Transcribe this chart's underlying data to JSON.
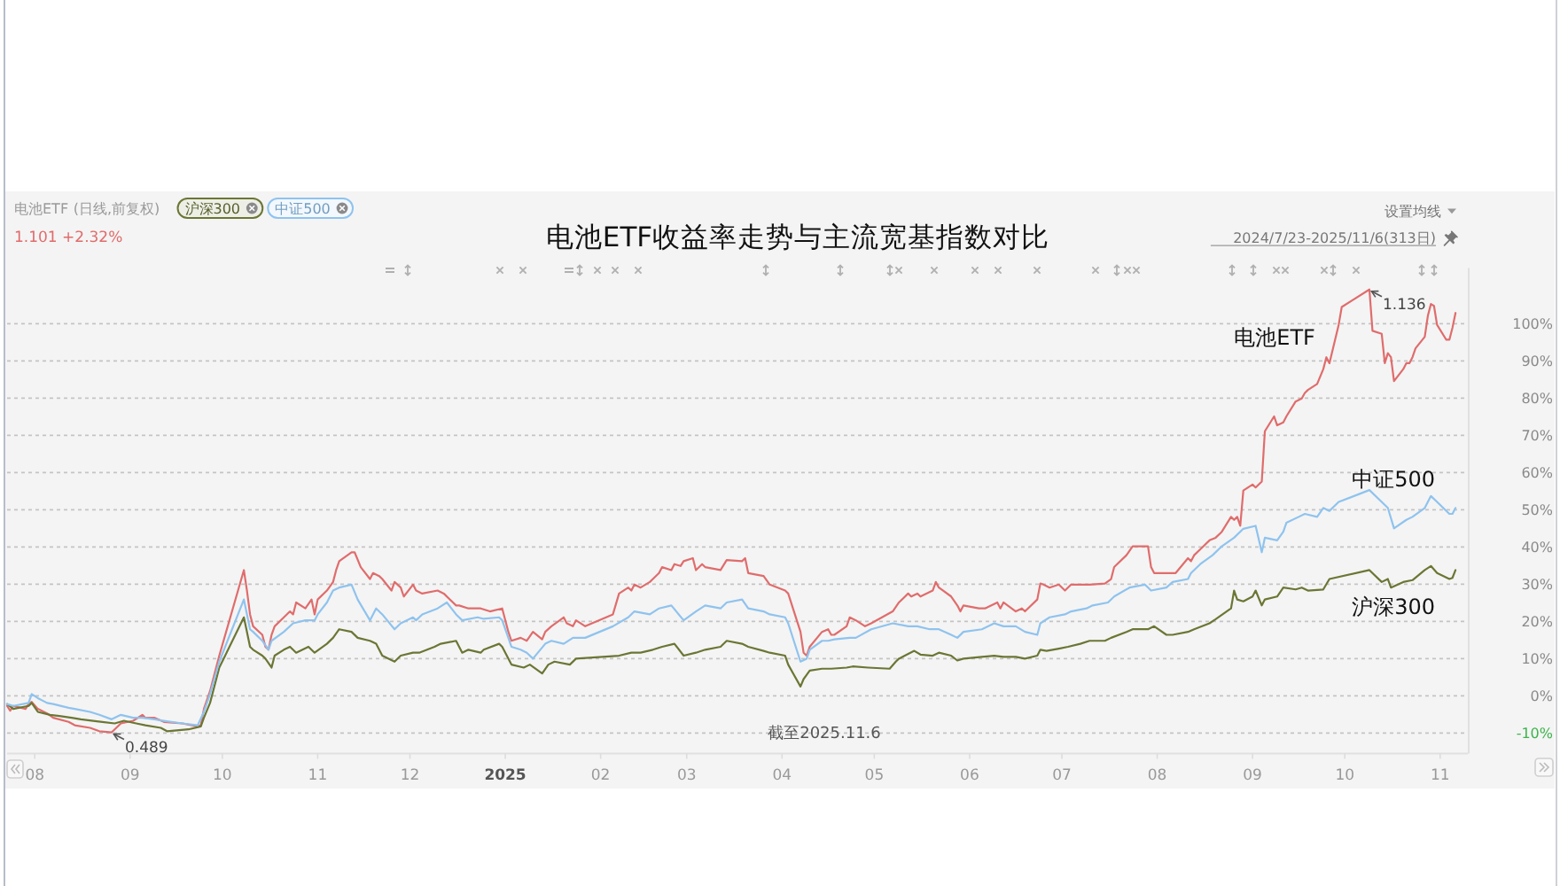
{
  "chart_data": {
    "type": "line",
    "title": "电池ETF收益率走势与主流宽基指数对比",
    "xlim": [
      "2024-07-23",
      "2025-11-10"
    ],
    "xticks": [
      {
        "value": "2024-08-01",
        "label": "08"
      },
      {
        "value": "2024-09-01",
        "label": "09"
      },
      {
        "value": "2024-10-01",
        "label": "10"
      },
      {
        "value": "2024-11-01",
        "label": "11"
      },
      {
        "value": "2024-12-01",
        "label": "12"
      },
      {
        "value": "2025-01-01",
        "label": "2025"
      },
      {
        "value": "2025-02-01",
        "label": "02"
      },
      {
        "value": "2025-03-01",
        "label": "03"
      },
      {
        "value": "2025-04-01",
        "label": "04"
      },
      {
        "value": "2025-05-01",
        "label": "05"
      },
      {
        "value": "2025-06-01",
        "label": "06"
      },
      {
        "value": "2025-07-01",
        "label": "07"
      },
      {
        "value": "2025-08-01",
        "label": "08"
      },
      {
        "value": "2025-09-01",
        "label": "09"
      },
      {
        "value": "2025-10-01",
        "label": "10"
      },
      {
        "value": "2025-11-01",
        "label": "11"
      }
    ],
    "ylim": [
      -15,
      115
    ],
    "yticks": [
      {
        "value": -10,
        "label": "-10%"
      },
      {
        "value": 0,
        "label": "0%"
      },
      {
        "value": 10,
        "label": "10%"
      },
      {
        "value": 20,
        "label": "20%"
      },
      {
        "value": 30,
        "label": "30%"
      },
      {
        "value": 40,
        "label": "40%"
      },
      {
        "value": 50,
        "label": "50%"
      },
      {
        "value": 60,
        "label": "60%"
      },
      {
        "value": 70,
        "label": "70%"
      },
      {
        "value": 80,
        "label": "80%"
      },
      {
        "value": 90,
        "label": "90%"
      },
      {
        "value": 100,
        "label": "100%"
      }
    ],
    "grid": "y",
    "legend": "top right",
    "series": [
      {
        "name": "电池ETF",
        "color": "#e06c6c",
        "x": [
          "2024-07-23",
          "2024-07-24",
          "2024-07-25",
          "2024-07-29",
          "2024-07-30",
          "2024-07-31",
          "2024-08-02",
          "2024-08-05",
          "2024-08-07",
          "2024-08-12",
          "2024-08-14",
          "2024-08-19",
          "2024-08-22",
          "2024-08-26",
          "2024-08-29",
          "2024-09-02",
          "2024-09-05",
          "2024-09-06",
          "2024-09-09",
          "2024-09-12",
          "2024-09-18",
          "2024-09-23",
          "2024-09-24",
          "2024-09-25",
          "2024-09-27",
          "2024-09-30",
          "2024-10-08",
          "2024-10-09",
          "2024-10-10",
          "2024-10-11",
          "2024-10-14",
          "2024-10-15",
          "2024-10-16",
          "2024-10-17",
          "2024-10-18",
          "2024-10-21",
          "2024-10-23",
          "2024-10-24",
          "2024-10-25",
          "2024-10-28",
          "2024-10-30",
          "2024-10-31",
          "2024-11-01",
          "2024-11-04",
          "2024-11-06",
          "2024-11-07",
          "2024-11-08",
          "2024-11-12",
          "2024-11-13",
          "2024-11-15",
          "2024-11-18",
          "2024-11-19",
          "2024-11-21",
          "2024-11-22",
          "2024-11-25",
          "2024-11-26",
          "2024-11-28",
          "2024-11-29",
          "2024-12-02",
          "2024-12-03",
          "2024-12-05",
          "2024-12-10",
          "2024-12-12",
          "2024-12-16",
          "2024-12-17",
          "2024-12-20",
          "2024-12-24",
          "2024-12-27",
          "2024-12-31",
          "2025-01-02",
          "2025-01-03",
          "2025-01-06",
          "2025-01-08",
          "2025-01-10",
          "2025-01-13",
          "2025-01-14",
          "2025-01-16",
          "2025-01-20",
          "2025-01-21",
          "2025-01-23",
          "2025-01-24",
          "2025-01-27",
          "2025-02-05",
          "2025-02-07",
          "2025-02-10",
          "2025-02-11",
          "2025-02-12",
          "2025-02-14",
          "2025-02-17",
          "2025-02-18",
          "2025-02-20",
          "2025-02-21",
          "2025-02-24",
          "2025-02-25",
          "2025-02-27",
          "2025-02-28",
          "2025-03-03",
          "2025-03-04",
          "2025-03-06",
          "2025-03-07",
          "2025-03-12",
          "2025-03-14",
          "2025-03-19",
          "2025-03-20",
          "2025-03-21",
          "2025-03-26",
          "2025-03-28",
          "2025-04-02",
          "2025-04-03",
          "2025-04-07",
          "2025-04-08",
          "2025-04-09",
          "2025-04-10",
          "2025-04-14",
          "2025-04-16",
          "2025-04-17",
          "2025-04-18",
          "2025-04-22",
          "2025-04-23",
          "2025-04-25",
          "2025-04-28",
          "2025-04-30",
          "2025-05-07",
          "2025-05-09",
          "2025-05-12",
          "2025-05-13",
          "2025-05-15",
          "2025-05-16",
          "2025-05-20",
          "2025-05-21",
          "2025-05-22",
          "2025-05-26",
          "2025-05-28",
          "2025-05-29",
          "2025-05-30",
          "2025-06-04",
          "2025-06-06",
          "2025-06-10",
          "2025-06-11",
          "2025-06-12",
          "2025-06-16",
          "2025-06-18",
          "2025-06-19",
          "2025-06-23",
          "2025-06-24",
          "2025-06-25",
          "2025-06-27",
          "2025-06-30",
          "2025-07-02",
          "2025-07-04",
          "2025-07-08",
          "2025-07-10",
          "2025-07-15",
          "2025-07-17",
          "2025-07-18",
          "2025-07-22",
          "2025-07-24",
          "2025-07-28",
          "2025-07-29",
          "2025-07-30",
          "2025-07-31",
          "2025-08-05",
          "2025-08-07",
          "2025-08-11",
          "2025-08-12",
          "2025-08-13",
          "2025-08-15",
          "2025-08-18",
          "2025-08-20",
          "2025-08-22",
          "2025-08-25",
          "2025-08-26",
          "2025-08-27",
          "2025-08-28",
          "2025-08-29",
          "2025-09-01",
          "2025-09-02",
          "2025-09-04",
          "2025-09-05",
          "2025-09-08",
          "2025-09-09",
          "2025-09-11",
          "2025-09-12",
          "2025-09-15",
          "2025-09-17",
          "2025-09-18",
          "2025-09-19",
          "2025-09-22",
          "2025-09-24",
          "2025-09-25",
          "2025-09-26",
          "2025-09-29",
          "2025-09-30",
          "2025-10-09",
          "2025-10-10",
          "2025-10-13",
          "2025-10-14",
          "2025-10-15",
          "2025-10-16",
          "2025-10-17",
          "2025-10-20",
          "2025-10-21",
          "2025-10-22",
          "2025-10-23",
          "2025-10-24",
          "2025-10-27",
          "2025-10-28",
          "2025-10-29",
          "2025-10-30",
          "2025-10-31",
          "2025-11-03",
          "2025-11-04",
          "2025-11-05",
          "2025-11-06"
        ],
        "values": [
          -2.7,
          -4.0,
          -2.7,
          -3.5,
          -2.2,
          -1.6,
          -3.5,
          -4.7,
          -5.9,
          -7.0,
          -7.9,
          -8.6,
          -9.5,
          -9.8,
          -7.4,
          -6.7,
          -5.1,
          -5.9,
          -5.9,
          -7.0,
          -7.4,
          -8.2,
          -7.9,
          -3.5,
          1.3,
          10.8,
          33.8,
          28.3,
          21.9,
          18.7,
          16.4,
          13.2,
          12.4,
          16.4,
          18.7,
          21.1,
          22.7,
          21.9,
          25.1,
          23.5,
          25.9,
          21.9,
          25.9,
          28.3,
          30.6,
          33.8,
          36.2,
          38.6,
          38.6,
          34.6,
          31.4,
          33.0,
          32.2,
          31.4,
          28.3,
          30.6,
          29.1,
          26.7,
          29.9,
          28.3,
          27.5,
          28.3,
          27.5,
          24.3,
          24.3,
          23.5,
          23.5,
          22.7,
          23.5,
          17.2,
          14.8,
          15.6,
          14.8,
          17.2,
          15.2,
          17.2,
          18.7,
          21.1,
          19.5,
          18.7,
          20.3,
          18.7,
          21.9,
          27.5,
          29.1,
          28.3,
          29.9,
          29.1,
          30.6,
          31.4,
          33.0,
          34.6,
          33.8,
          35.4,
          34.9,
          36.2,
          37.0,
          33.8,
          35.4,
          34.6,
          33.8,
          36.5,
          36.2,
          37.0,
          33.0,
          32.2,
          29.9,
          28.3,
          27.5,
          17.2,
          11.6,
          10.8,
          13.2,
          17.2,
          17.9,
          16.4,
          16.4,
          18.7,
          21.1,
          20.3,
          18.7,
          19.5,
          22.7,
          25.1,
          27.5,
          26.7,
          27.5,
          26.7,
          28.3,
          30.6,
          29.1,
          26.7,
          24.3,
          22.7,
          24.3,
          23.5,
          23.5,
          25.1,
          23.5,
          25.1,
          22.7,
          23.5,
          22.7,
          25.9,
          30.2,
          29.9,
          29.1,
          29.9,
          28.3,
          29.9,
          29.9,
          29.9,
          30.2,
          31.4,
          34.6,
          37.8,
          40.2,
          40.2,
          40.2,
          34.6,
          33.0,
          33.0,
          33.0,
          37.0,
          36.2,
          37.8,
          39.4,
          41.8,
          42.5,
          44.1,
          48.1,
          47.3,
          48.1,
          45.7,
          55.2,
          56.8,
          56.0,
          57.6,
          71.1,
          75.1,
          72.7,
          73.5,
          75.1,
          79.1,
          79.9,
          81.4,
          82.2,
          83.8,
          87.8,
          91.0,
          89.4,
          99.7,
          104.5,
          109.2,
          98.1,
          97.3,
          89.4,
          92.1,
          91.0,
          84.6,
          87.8,
          89.4,
          89.4,
          91.0,
          93.4,
          96.5,
          102.1,
          105.3,
          104.8,
          99.7,
          95.7,
          95.7,
          98.9,
          102.9
        ]
      },
      {
        "name": "沪深300",
        "color": "#6b7634",
        "x": [
          "2024-07-23",
          "2024-07-25",
          "2024-07-30",
          "2024-07-31",
          "2024-08-02",
          "2024-08-06",
          "2024-08-09",
          "2024-08-13",
          "2024-08-16",
          "2024-08-20",
          "2024-08-23",
          "2024-08-27",
          "2024-08-30",
          "2024-09-03",
          "2024-09-06",
          "2024-09-11",
          "2024-09-13",
          "2024-09-20",
          "2024-09-24",
          "2024-09-25",
          "2024-09-27",
          "2024-09-30",
          "2024-10-08",
          "2024-10-09",
          "2024-10-10",
          "2024-10-11",
          "2024-10-14",
          "2024-10-15",
          "2024-10-17",
          "2024-10-18",
          "2024-10-21",
          "2024-10-23",
          "2024-10-25",
          "2024-10-29",
          "2024-10-31",
          "2024-11-04",
          "2024-11-06",
          "2024-11-08",
          "2024-11-12",
          "2024-11-14",
          "2024-11-18",
          "2024-11-20",
          "2024-11-22",
          "2024-11-26",
          "2024-11-28",
          "2024-12-02",
          "2024-12-04",
          "2024-12-09",
          "2024-12-11",
          "2024-12-16",
          "2024-12-18",
          "2024-12-20",
          "2024-12-24",
          "2024-12-25",
          "2024-12-30",
          "2024-12-31",
          "2025-01-03",
          "2025-01-07",
          "2025-01-09",
          "2025-01-13",
          "2025-01-15",
          "2025-01-17",
          "2025-01-22",
          "2025-01-24",
          "2025-02-07",
          "2025-02-11",
          "2025-02-14",
          "2025-02-18",
          "2025-02-21",
          "2025-02-25",
          "2025-02-28",
          "2025-03-04",
          "2025-03-07",
          "2025-03-12",
          "2025-03-14",
          "2025-03-19",
          "2025-03-21",
          "2025-03-26",
          "2025-03-28",
          "2025-04-02",
          "2025-04-03",
          "2025-04-07",
          "2025-04-08",
          "2025-04-10",
          "2025-04-14",
          "2025-04-17",
          "2025-04-22",
          "2025-04-24",
          "2025-04-29",
          "2025-05-06",
          "2025-05-08",
          "2025-05-09",
          "2025-05-14",
          "2025-05-16",
          "2025-05-20",
          "2025-05-22",
          "2025-05-26",
          "2025-05-28",
          "2025-05-30",
          "2025-06-05",
          "2025-06-09",
          "2025-06-12",
          "2025-06-16",
          "2025-06-19",
          "2025-06-23",
          "2025-06-24",
          "2025-06-26",
          "2025-06-30",
          "2025-07-03",
          "2025-07-07",
          "2025-07-10",
          "2025-07-15",
          "2025-07-17",
          "2025-07-22",
          "2025-07-24",
          "2025-07-29",
          "2025-07-31",
          "2025-08-04",
          "2025-08-06",
          "2025-08-11",
          "2025-08-13",
          "2025-08-18",
          "2025-08-20",
          "2025-08-25",
          "2025-08-26",
          "2025-08-27",
          "2025-08-29",
          "2025-09-01",
          "2025-09-02",
          "2025-09-04",
          "2025-09-05",
          "2025-09-09",
          "2025-09-11",
          "2025-09-15",
          "2025-09-17",
          "2025-09-19",
          "2025-09-24",
          "2025-09-26",
          "2025-10-09",
          "2025-10-13",
          "2025-10-15",
          "2025-10-16",
          "2025-10-20",
          "2025-10-23",
          "2025-10-27",
          "2025-10-29",
          "2025-10-31",
          "2025-11-04",
          "2025-11-05",
          "2025-11-06"
        ],
        "values": [
          -2.2,
          -3.5,
          -2.7,
          -1.9,
          -4.3,
          -5.1,
          -5.4,
          -5.9,
          -6.3,
          -6.7,
          -7.0,
          -7.4,
          -6.7,
          -7.4,
          -7.9,
          -8.6,
          -9.5,
          -9.0,
          -8.2,
          -5.9,
          -1.9,
          7.6,
          21.1,
          17.2,
          13.2,
          12.4,
          10.8,
          10.0,
          7.6,
          10.8,
          12.4,
          13.2,
          11.6,
          13.2,
          11.6,
          14.0,
          15.6,
          17.9,
          17.2,
          15.6,
          14.8,
          14.0,
          10.8,
          9.2,
          10.8,
          11.6,
          11.6,
          13.2,
          14.0,
          14.8,
          11.6,
          12.4,
          11.6,
          12.4,
          14.0,
          13.2,
          8.4,
          7.6,
          8.4,
          6.0,
          8.4,
          9.2,
          8.4,
          10.0,
          10.8,
          11.6,
          11.6,
          12.4,
          13.2,
          14.0,
          10.8,
          11.6,
          12.4,
          13.2,
          14.8,
          14.0,
          13.2,
          12.1,
          11.6,
          10.8,
          8.4,
          2.5,
          4.5,
          6.8,
          7.3,
          7.3,
          7.6,
          7.9,
          7.6,
          7.3,
          9.2,
          10.0,
          12.1,
          11.1,
          10.8,
          11.6,
          10.8,
          9.5,
          10.0,
          10.5,
          10.8,
          10.5,
          10.5,
          10.0,
          10.8,
          12.4,
          12.1,
          12.7,
          13.2,
          14.0,
          14.8,
          14.8,
          15.6,
          17.2,
          17.9,
          17.9,
          18.7,
          16.4,
          16.4,
          17.2,
          17.9,
          19.5,
          20.6,
          23.5,
          28.3,
          25.9,
          25.4,
          26.7,
          28.3,
          24.3,
          25.9,
          26.7,
          29.1,
          28.6,
          29.1,
          28.3,
          28.6,
          31.4,
          33.8,
          30.6,
          31.4,
          29.1,
          30.6,
          31.1,
          33.8,
          34.9,
          33.0,
          31.4,
          31.7,
          33.8
        ]
      },
      {
        "name": "中证500",
        "color": "#8fc3ee",
        "x": [
          "2024-07-23",
          "2024-07-25",
          "2024-07-30",
          "2024-07-31",
          "2024-08-02",
          "2024-08-05",
          "2024-08-07",
          "2024-08-12",
          "2024-08-14",
          "2024-08-19",
          "2024-08-22",
          "2024-08-26",
          "2024-08-29",
          "2024-09-02",
          "2024-09-05",
          "2024-09-09",
          "2024-09-12",
          "2024-09-18",
          "2024-09-23",
          "2024-09-25",
          "2024-09-27",
          "2024-09-30",
          "2024-10-08",
          "2024-10-09",
          "2024-10-10",
          "2024-10-11",
          "2024-10-14",
          "2024-10-16",
          "2024-10-17",
          "2024-10-21",
          "2024-10-24",
          "2024-10-28",
          "2024-10-31",
          "2024-11-01",
          "2024-11-04",
          "2024-11-06",
          "2024-11-08",
          "2024-11-12",
          "2024-11-14",
          "2024-11-18",
          "2024-11-20",
          "2024-11-22",
          "2024-11-26",
          "2024-11-28",
          "2024-12-02",
          "2024-12-03",
          "2024-12-05",
          "2024-12-10",
          "2024-12-13",
          "2024-12-16",
          "2024-12-18",
          "2024-12-23",
          "2024-12-25",
          "2024-12-30",
          "2024-12-31",
          "2025-01-03",
          "2025-01-06",
          "2025-01-08",
          "2025-01-10",
          "2025-01-14",
          "2025-01-16",
          "2025-01-20",
          "2025-01-23",
          "2025-01-27",
          "2025-02-05",
          "2025-02-10",
          "2025-02-12",
          "2025-02-17",
          "2025-02-20",
          "2025-02-24",
          "2025-02-28",
          "2025-03-04",
          "2025-03-07",
          "2025-03-12",
          "2025-03-14",
          "2025-03-19",
          "2025-03-21",
          "2025-03-26",
          "2025-03-28",
          "2025-04-02",
          "2025-04-03",
          "2025-04-07",
          "2025-04-09",
          "2025-04-10",
          "2025-04-14",
          "2025-04-16",
          "2025-04-18",
          "2025-04-23",
          "2025-04-25",
          "2025-04-30",
          "2025-05-07",
          "2025-05-12",
          "2025-05-15",
          "2025-05-19",
          "2025-05-22",
          "2025-05-26",
          "2025-05-28",
          "2025-05-30",
          "2025-06-05",
          "2025-06-09",
          "2025-06-12",
          "2025-06-16",
          "2025-06-19",
          "2025-06-23",
          "2025-06-24",
          "2025-06-27",
          "2025-07-02",
          "2025-07-04",
          "2025-07-09",
          "2025-07-11",
          "2025-07-16",
          "2025-07-18",
          "2025-07-23",
          "2025-07-28",
          "2025-07-30",
          "2025-08-04",
          "2025-08-06",
          "2025-08-11",
          "2025-08-12",
          "2025-08-15",
          "2025-08-19",
          "2025-08-22",
          "2025-08-26",
          "2025-08-29",
          "2025-09-02",
          "2025-09-04",
          "2025-09-05",
          "2025-09-09",
          "2025-09-11",
          "2025-09-12",
          "2025-09-16",
          "2025-09-18",
          "2025-09-22",
          "2025-09-24",
          "2025-09-26",
          "2025-09-29",
          "2025-10-09",
          "2025-10-13",
          "2025-10-15",
          "2025-10-17",
          "2025-10-21",
          "2025-10-23",
          "2025-10-27",
          "2025-10-29",
          "2025-10-31",
          "2025-11-04",
          "2025-11-05",
          "2025-11-06"
        ],
        "values": [
          -2.2,
          -2.7,
          -1.9,
          0.5,
          -0.6,
          -1.9,
          -2.2,
          -3.2,
          -3.5,
          -4.3,
          -5.1,
          -6.3,
          -5.1,
          -5.9,
          -5.9,
          -6.3,
          -6.7,
          -7.4,
          -7.9,
          -4.3,
          0.5,
          9.2,
          25.9,
          21.9,
          17.9,
          17.2,
          14.8,
          12.4,
          14.8,
          17.2,
          19.5,
          20.3,
          20.3,
          21.9,
          25.1,
          28.3,
          29.1,
          29.9,
          25.9,
          20.3,
          23.5,
          21.9,
          17.9,
          19.5,
          21.1,
          20.3,
          21.9,
          23.5,
          25.1,
          21.9,
          20.3,
          21.1,
          20.7,
          21.1,
          20.3,
          13.2,
          12.4,
          11.6,
          10.0,
          14.0,
          14.8,
          14.0,
          15.6,
          15.6,
          18.7,
          21.1,
          22.7,
          21.9,
          23.5,
          24.3,
          20.3,
          22.7,
          24.3,
          23.5,
          25.1,
          25.9,
          23.5,
          22.7,
          21.9,
          21.1,
          19.5,
          9.2,
          10.0,
          12.4,
          14.8,
          14.8,
          15.2,
          15.6,
          15.6,
          17.9,
          19.5,
          18.7,
          18.7,
          17.9,
          17.9,
          16.4,
          15.6,
          17.2,
          17.9,
          19.5,
          18.7,
          18.7,
          17.2,
          16.4,
          19.5,
          21.1,
          21.9,
          22.7,
          23.5,
          24.3,
          25.1,
          26.7,
          29.1,
          29.9,
          28.3,
          29.1,
          30.6,
          31.4,
          33.0,
          35.4,
          37.8,
          40.2,
          42.5,
          44.9,
          45.7,
          38.6,
          42.5,
          41.8,
          44.1,
          46.5,
          48.1,
          48.9,
          48.1,
          50.5,
          49.7,
          52.1,
          55.3,
          52.1,
          50.5,
          45.0,
          47.3,
          48.1,
          50.5,
          53.7,
          52.1,
          48.9,
          48.9,
          50.5
        ]
      }
    ],
    "annotations": [
      "(日线,前复权)",
      "1.101 +2.32%",
      "设置均线",
      "2024/7/23-2025/11/6(313日)",
      "截至2025.11.6",
      {
        "text": "1.136",
        "x": "2025-10-09",
        "y": 109.2
      },
      {
        "text": "0.489",
        "x": "2024-08-26",
        "y": -9.8
      }
    ]
  }
}
